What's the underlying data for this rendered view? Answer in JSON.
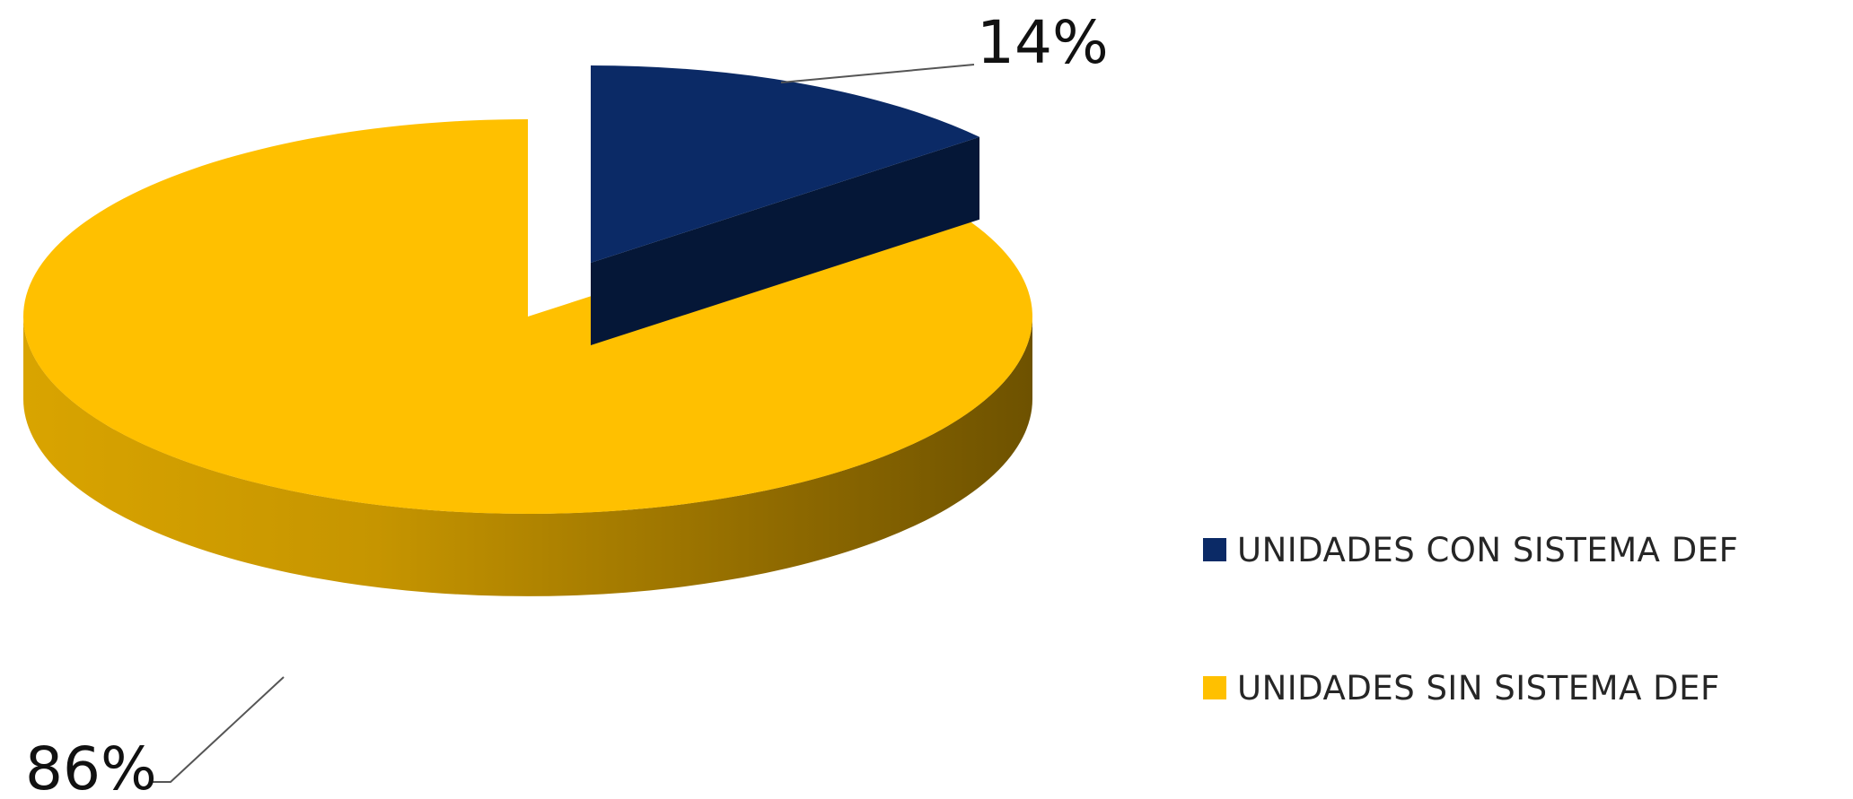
{
  "chart_data": {
    "type": "pie",
    "style": "3d-exploded",
    "title": "",
    "slices": [
      {
        "label": "UNIDADES CON SISTEMA DEF",
        "value": 14,
        "data_label": "14%",
        "color": "#0B2A66",
        "side_color": "#051737"
      },
      {
        "label": "UNIDADES SIN SISTEMA DEF",
        "value": 86,
        "data_label": "86%",
        "color": "#FFC000",
        "side_color": "#9E7600"
      }
    ],
    "legend_position": "right"
  }
}
